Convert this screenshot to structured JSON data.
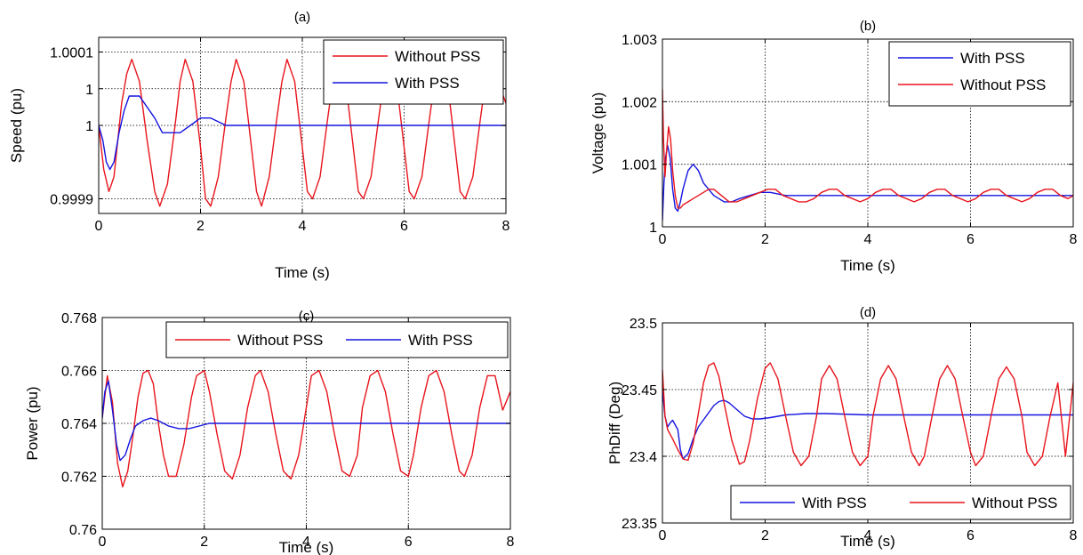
{
  "chart_data": [
    {
      "panel": "(a)",
      "type": "line",
      "title": "(a)",
      "xlabel": "Time (s)",
      "ylabel": "Speed (pu)",
      "xlim": [
        0,
        8
      ],
      "ylim": [
        0.99988,
        1.00012
      ],
      "xticks": [
        0,
        2,
        4,
        6,
        8
      ],
      "xtick_labels": [
        "0",
        "2",
        "4",
        "6",
        "8"
      ],
      "yticks": [
        0.9999,
        1.0,
        1.00005,
        1.0001
      ],
      "ytick_labels": [
        "0.9999",
        "1",
        "1",
        "1.0001"
      ],
      "grid": true,
      "legend_position": "top-right",
      "legend_layout": "vertical",
      "series": [
        {
          "name": "Without PSS",
          "color": "#e8141c",
          "x": [
            0,
            0.1,
            0.2,
            0.3,
            0.45,
            0.55,
            0.65,
            0.8,
            0.95,
            1.1,
            1.2,
            1.35,
            1.5,
            1.6,
            1.7,
            1.85,
            2.0,
            2.1,
            2.2,
            2.35,
            2.5,
            2.6,
            2.7,
            2.85,
            3.0,
            3.1,
            3.2,
            3.35,
            3.5,
            3.6,
            3.7,
            3.85,
            4.0,
            4.1,
            4.2,
            4.35,
            4.5,
            4.6,
            4.7,
            4.85,
            5.0,
            5.1,
            5.2,
            5.35,
            5.5,
            5.6,
            5.7,
            5.85,
            6.0,
            6.1,
            6.2,
            6.35,
            6.5,
            6.6,
            6.7,
            6.85,
            7.0,
            7.1,
            7.2,
            7.35,
            7.5,
            7.6,
            7.7,
            7.85,
            8.0
          ],
          "values": [
            1.0,
            0.99994,
            0.99991,
            0.99993,
            1.00003,
            1.00007,
            1.00009,
            1.00006,
            0.99998,
            0.99991,
            0.99989,
            0.99992,
            1.0,
            1.00006,
            1.00009,
            1.00006,
            0.99997,
            0.9999,
            0.99989,
            0.99993,
            1.00001,
            1.00006,
            1.00009,
            1.00006,
            0.99997,
            0.99991,
            0.99989,
            0.99993,
            1.00001,
            1.00006,
            1.00009,
            1.00006,
            0.99997,
            0.99991,
            0.9999,
            0.99993,
            1.00001,
            1.00006,
            1.00009,
            1.00006,
            0.99997,
            0.99991,
            0.9999,
            0.99993,
            1.00001,
            1.00006,
            1.00008,
            1.00006,
            0.99997,
            0.99991,
            0.9999,
            0.99993,
            1.00001,
            1.00006,
            1.00008,
            1.00006,
            0.99997,
            0.99991,
            0.9999,
            0.99993,
            1.00001,
            1.00006,
            1.00008,
            1.00006,
            1.00003
          ]
        },
        {
          "name": "With PSS",
          "color": "#1414e0",
          "x": [
            0,
            0.08,
            0.15,
            0.22,
            0.3,
            0.4,
            0.5,
            0.6,
            0.7,
            0.8,
            0.9,
            1.0,
            1.1,
            1.25,
            1.4,
            1.6,
            1.8,
            2.0,
            2.2,
            2.5,
            2.8,
            3.2,
            4.0,
            5.0,
            6.0,
            7.0,
            8.0
          ],
          "values": [
            1.0,
            0.99998,
            0.99995,
            0.99994,
            0.99995,
            0.99999,
            1.00002,
            1.00004,
            1.00004,
            1.00004,
            1.00003,
            1.00002,
            1.00001,
            0.99999,
            0.99999,
            0.99999,
            1.0,
            1.00001,
            1.00001,
            1.0,
            1.0,
            1.0,
            1.0,
            1.0,
            1.0,
            1.0,
            1.0
          ]
        }
      ]
    },
    {
      "panel": "(b)",
      "type": "line",
      "title": "(b)",
      "xlabel": "Time (s)",
      "ylabel": "Voltage (pu)",
      "xlim": [
        0,
        8
      ],
      "ylim": [
        1.0,
        1.003
      ],
      "xticks": [
        0,
        2,
        4,
        6,
        8
      ],
      "xtick_labels": [
        "0",
        "2",
        "4",
        "6",
        "8"
      ],
      "yticks": [
        1.0,
        1.001,
        1.002,
        1.003
      ],
      "ytick_labels": [
        "1",
        "1.001",
        "1.002",
        "1.003"
      ],
      "grid": true,
      "legend_position": "top-right",
      "legend_layout": "vertical",
      "series": [
        {
          "name": "With PSS",
          "color": "#1414e0",
          "x": [
            0,
            0.03,
            0.06,
            0.1,
            0.15,
            0.2,
            0.25,
            0.3,
            0.35,
            0.4,
            0.5,
            0.6,
            0.7,
            0.8,
            0.9,
            1.0,
            1.1,
            1.2,
            1.35,
            1.5,
            1.7,
            1.9,
            2.1,
            2.4,
            2.8,
            3.2,
            4.0,
            5.0,
            6.0,
            7.0,
            8.0
          ],
          "values": [
            1.0001,
            1.0007,
            1.0011,
            1.0013,
            1.0011,
            1.0006,
            1.0003,
            1.00025,
            1.0004,
            1.0006,
            1.0009,
            1.001,
            1.0009,
            1.0007,
            1.0006,
            1.0005,
            1.00045,
            1.0004,
            1.0004,
            1.00045,
            1.0005,
            1.00055,
            1.00055,
            1.0005,
            1.0005,
            1.0005,
            1.0005,
            1.0005,
            1.0005,
            1.0005,
            1.0005
          ]
        },
        {
          "name": "Without PSS",
          "color": "#e8141c",
          "x": [
            0,
            0.02,
            0.05,
            0.08,
            0.12,
            0.16,
            0.2,
            0.25,
            0.3,
            0.35,
            0.4,
            0.5,
            0.6,
            0.7,
            0.8,
            0.9,
            1.0,
            1.15,
            1.3,
            1.45,
            1.6,
            1.75,
            1.9,
            2.05,
            2.2,
            2.35,
            2.5,
            2.65,
            2.8,
            2.95,
            3.1,
            3.25,
            3.4,
            3.55,
            3.7,
            3.85,
            4.0,
            4.15,
            4.3,
            4.45,
            4.6,
            4.75,
            4.9,
            5.05,
            5.2,
            5.35,
            5.5,
            5.65,
            5.8,
            5.95,
            6.1,
            6.25,
            6.4,
            6.55,
            6.7,
            6.85,
            7.0,
            7.15,
            7.3,
            7.45,
            7.6,
            7.75,
            7.9,
            8.0
          ],
          "values": [
            1.0022,
            1.0014,
            1.0008,
            1.0012,
            1.0016,
            1.0014,
            1.0009,
            1.0005,
            1.0003,
            1.0003,
            1.00035,
            1.0004,
            1.00045,
            1.0005,
            1.00055,
            1.0006,
            1.0006,
            1.0005,
            1.0004,
            1.0004,
            1.00045,
            1.0005,
            1.00055,
            1.0006,
            1.0006,
            1.0005,
            1.00045,
            1.0004,
            1.0004,
            1.00045,
            1.00055,
            1.0006,
            1.0006,
            1.0005,
            1.00045,
            1.0004,
            1.00045,
            1.00055,
            1.0006,
            1.0006,
            1.0005,
            1.00045,
            1.0004,
            1.00045,
            1.00055,
            1.0006,
            1.0006,
            1.0005,
            1.00045,
            1.0004,
            1.00045,
            1.00055,
            1.0006,
            1.0006,
            1.0005,
            1.00045,
            1.0004,
            1.00045,
            1.00055,
            1.0006,
            1.0006,
            1.0005,
            1.00045,
            1.0005
          ]
        }
      ]
    },
    {
      "panel": "(c)",
      "type": "line",
      "title": "(c)",
      "xlabel": "Time (s)",
      "ylabel": "Power (pu)",
      "xlim": [
        0,
        8
      ],
      "ylim": [
        0.76,
        0.768
      ],
      "xticks": [
        0,
        2,
        4,
        6,
        8
      ],
      "xtick_labels": [
        "0",
        "2",
        "4",
        "6",
        "8"
      ],
      "yticks": [
        0.76,
        0.762,
        0.764,
        0.766,
        0.768
      ],
      "ytick_labels": [
        "0.76",
        "0.762",
        "0.764",
        "0.766",
        "0.768"
      ],
      "grid": true,
      "legend_position": "top-right",
      "legend_layout": "horizontal",
      "series": [
        {
          "name": "Without PSS",
          "color": "#e8141c",
          "x": [
            0,
            0.1,
            0.2,
            0.3,
            0.4,
            0.5,
            0.6,
            0.7,
            0.8,
            0.9,
            1.0,
            1.1,
            1.2,
            1.3,
            1.45,
            1.6,
            1.75,
            1.85,
            2.0,
            2.1,
            2.25,
            2.4,
            2.55,
            2.7,
            2.85,
            3.0,
            3.1,
            3.25,
            3.4,
            3.55,
            3.7,
            3.85,
            4.0,
            4.1,
            4.25,
            4.4,
            4.55,
            4.7,
            4.85,
            5.0,
            5.1,
            5.25,
            5.4,
            5.55,
            5.7,
            5.85,
            6.0,
            6.1,
            6.25,
            6.4,
            6.55,
            6.7,
            6.85,
            7.0,
            7.1,
            7.25,
            7.4,
            7.55,
            7.7,
            7.85,
            8.0
          ],
          "values": [
            0.7642,
            0.7658,
            0.7648,
            0.7625,
            0.7616,
            0.7622,
            0.7635,
            0.765,
            0.7659,
            0.766,
            0.7655,
            0.764,
            0.7628,
            0.762,
            0.762,
            0.7632,
            0.765,
            0.7658,
            0.766,
            0.7652,
            0.7636,
            0.7622,
            0.7619,
            0.7628,
            0.7646,
            0.7658,
            0.766,
            0.7652,
            0.7636,
            0.7622,
            0.7619,
            0.7628,
            0.7646,
            0.7658,
            0.766,
            0.7652,
            0.7636,
            0.7622,
            0.762,
            0.7628,
            0.7646,
            0.7658,
            0.766,
            0.7652,
            0.7636,
            0.7622,
            0.762,
            0.7628,
            0.7646,
            0.7658,
            0.766,
            0.7652,
            0.7636,
            0.7622,
            0.762,
            0.7628,
            0.7646,
            0.7658,
            0.7658,
            0.7645,
            0.7652
          ]
        },
        {
          "name": "With PSS",
          "color": "#1414e0",
          "x": [
            0,
            0.05,
            0.12,
            0.2,
            0.28,
            0.35,
            0.45,
            0.55,
            0.65,
            0.8,
            0.95,
            1.1,
            1.3,
            1.5,
            1.7,
            1.9,
            2.1,
            2.4,
            2.8,
            3.5,
            4.0,
            5.0,
            6.0,
            7.0,
            8.0
          ],
          "values": [
            0.7642,
            0.7652,
            0.7656,
            0.7645,
            0.7632,
            0.7626,
            0.7628,
            0.7634,
            0.7639,
            0.7641,
            0.7642,
            0.7641,
            0.7639,
            0.7638,
            0.7638,
            0.7639,
            0.764,
            0.764,
            0.764,
            0.764,
            0.764,
            0.764,
            0.764,
            0.764,
            0.764
          ]
        }
      ]
    },
    {
      "panel": "(d)",
      "type": "line",
      "title": "(d)",
      "xlabel": "Time (s)",
      "ylabel": "PhDiff (Deg)",
      "xlim": [
        0,
        8
      ],
      "ylim": [
        23.35,
        23.5
      ],
      "xticks": [
        0,
        2,
        4,
        6,
        8
      ],
      "xtick_labels": [
        "0",
        "2",
        "4",
        "6",
        "8"
      ],
      "yticks": [
        23.35,
        23.4,
        23.45,
        23.5
      ],
      "ytick_labels": [
        "23.35",
        "23.4",
        "23.45",
        "23.5"
      ],
      "grid": true,
      "legend_position": "bottom-right",
      "legend_layout": "horizontal",
      "series": [
        {
          "name": "With PSS",
          "color": "#1414e0",
          "x": [
            0,
            0.05,
            0.1,
            0.15,
            0.2,
            0.3,
            0.35,
            0.4,
            0.5,
            0.6,
            0.7,
            0.85,
            1.0,
            1.1,
            1.2,
            1.3,
            1.45,
            1.6,
            1.75,
            1.9,
            2.1,
            2.4,
            2.8,
            3.2,
            4.0,
            5.0,
            6.0,
            7.0,
            8.0
          ],
          "values": [
            23.45,
            23.43,
            23.422,
            23.425,
            23.427,
            23.42,
            23.405,
            23.398,
            23.402,
            23.413,
            23.422,
            23.43,
            23.438,
            23.441,
            23.442,
            23.44,
            23.435,
            23.43,
            23.428,
            23.428,
            23.429,
            23.431,
            23.432,
            23.432,
            23.431,
            23.431,
            23.431,
            23.431,
            23.431
          ]
        },
        {
          "name": "Without PSS",
          "color": "#e8141c",
          "x": [
            0,
            0.05,
            0.1,
            0.2,
            0.3,
            0.4,
            0.5,
            0.6,
            0.7,
            0.8,
            0.9,
            1.0,
            1.1,
            1.2,
            1.35,
            1.5,
            1.6,
            1.7,
            1.85,
            2.0,
            2.1,
            2.25,
            2.4,
            2.55,
            2.7,
            2.85,
            3.0,
            3.1,
            3.25,
            3.4,
            3.55,
            3.7,
            3.85,
            4.0,
            4.1,
            4.25,
            4.4,
            4.55,
            4.7,
            4.85,
            5.0,
            5.1,
            5.25,
            5.4,
            5.55,
            5.7,
            5.85,
            6.0,
            6.1,
            6.25,
            6.4,
            6.55,
            6.7,
            6.85,
            7.0,
            7.1,
            7.25,
            7.4,
            7.55,
            7.7,
            7.85,
            8.0
          ],
          "values": [
            23.465,
            23.43,
            23.42,
            23.413,
            23.405,
            23.398,
            23.397,
            23.41,
            23.432,
            23.455,
            23.468,
            23.47,
            23.46,
            23.44,
            23.412,
            23.394,
            23.396,
            23.412,
            23.443,
            23.466,
            23.47,
            23.458,
            23.43,
            23.403,
            23.393,
            23.4,
            23.43,
            23.458,
            23.468,
            23.458,
            23.43,
            23.403,
            23.393,
            23.4,
            23.43,
            23.458,
            23.468,
            23.458,
            23.43,
            23.403,
            23.393,
            23.4,
            23.43,
            23.458,
            23.468,
            23.458,
            23.43,
            23.403,
            23.393,
            23.4,
            23.43,
            23.458,
            23.467,
            23.458,
            23.43,
            23.403,
            23.393,
            23.4,
            23.43,
            23.455,
            23.4,
            23.455
          ]
        }
      ]
    }
  ]
}
